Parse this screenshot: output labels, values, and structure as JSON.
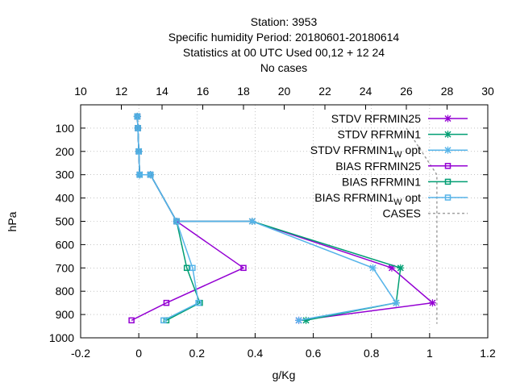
{
  "title_lines": [
    "Station:     3953",
    "Specific humidity  Period: 20180601-20180614",
    "Statistics at 00 UTC  Used  00,12  + 12 24",
    "No cases"
  ],
  "colors": {
    "purple": "#9400d3",
    "green": "#009e73",
    "blue": "#56b4e9",
    "gray": "#a0a0a0"
  },
  "chart_data": {
    "type": "line",
    "xlabel": "g/Kg",
    "ylabel": "hPa",
    "xlim": [
      -0.2,
      1.2
    ],
    "ylim": [
      1000,
      0
    ],
    "x_ticks": [
      "-0.2",
      "0",
      "0.2",
      "0.4",
      "0.6",
      "0.8",
      "1",
      "1.2"
    ],
    "y_ticks": [
      "100",
      "200",
      "300",
      "400",
      "500",
      "600",
      "700",
      "800",
      "900",
      "1000"
    ],
    "x2lim": [
      10,
      30
    ],
    "x2_ticks": [
      "10",
      "12",
      "14",
      "16",
      "18",
      "20",
      "22",
      "24",
      "26",
      "28",
      "30"
    ],
    "grid": true,
    "legend_position": "top-right",
    "series": [
      {
        "name": "STDV RFRMIN25",
        "color": "#9400d3",
        "marker": "x",
        "points": [
          [
            -0.005,
            50
          ],
          [
            -0.003,
            100
          ],
          [
            0.0,
            200
          ],
          [
            0.003,
            300
          ],
          [
            0.04,
            300
          ],
          [
            0.13,
            500
          ],
          [
            0.39,
            500
          ],
          [
            0.87,
            700
          ],
          [
            1.01,
            850
          ],
          [
            0.55,
            925
          ]
        ]
      },
      {
        "name": "STDV RFRMIN1",
        "color": "#009e73",
        "marker": "x",
        "points": [
          [
            -0.005,
            50
          ],
          [
            -0.003,
            100
          ],
          [
            0.0,
            200
          ],
          [
            0.003,
            300
          ],
          [
            0.04,
            300
          ],
          [
            0.13,
            500
          ],
          [
            0.39,
            500
          ],
          [
            0.9,
            700
          ],
          [
            0.885,
            850
          ],
          [
            0.575,
            925
          ]
        ]
      },
      {
        "name": "STDV RFRMIN1_W opt",
        "color": "#56b4e9",
        "marker": "x",
        "points": [
          [
            -0.005,
            50
          ],
          [
            -0.003,
            100
          ],
          [
            0.0,
            200
          ],
          [
            0.003,
            300
          ],
          [
            0.04,
            300
          ],
          [
            0.13,
            500
          ],
          [
            0.39,
            500
          ],
          [
            0.805,
            700
          ],
          [
            0.885,
            850
          ],
          [
            0.55,
            925
          ]
        ]
      },
      {
        "name": "BIAS RFRMIN25",
        "color": "#9400d3",
        "marker": "square",
        "points": [
          [
            -0.005,
            50
          ],
          [
            -0.003,
            100
          ],
          [
            0.0,
            200
          ],
          [
            0.003,
            300
          ],
          [
            0.04,
            300
          ],
          [
            0.13,
            500
          ],
          [
            0.36,
            700
          ],
          [
            0.095,
            850
          ],
          [
            -0.025,
            925
          ]
        ]
      },
      {
        "name": "BIAS RFRMIN1",
        "color": "#009e73",
        "marker": "square",
        "points": [
          [
            -0.005,
            50
          ],
          [
            -0.003,
            100
          ],
          [
            0.0,
            200
          ],
          [
            0.003,
            300
          ],
          [
            0.04,
            300
          ],
          [
            0.13,
            500
          ],
          [
            0.165,
            700
          ],
          [
            0.21,
            850
          ],
          [
            0.095,
            925
          ]
        ]
      },
      {
        "name": "BIAS RFRMIN1_W opt",
        "color": "#56b4e9",
        "marker": "square",
        "points": [
          [
            -0.005,
            50
          ],
          [
            -0.003,
            100
          ],
          [
            0.0,
            200
          ],
          [
            0.003,
            300
          ],
          [
            0.04,
            300
          ],
          [
            0.13,
            500
          ],
          [
            0.185,
            700
          ],
          [
            0.205,
            850
          ],
          [
            0.085,
            925
          ]
        ]
      },
      {
        "name": "CASES",
        "color": "#a0a0a0",
        "marker": "none",
        "dashed": true,
        "x2_points": [
          [
            26,
            100
          ],
          [
            27.5,
            300
          ],
          [
            27.5,
            940
          ]
        ]
      }
    ]
  }
}
